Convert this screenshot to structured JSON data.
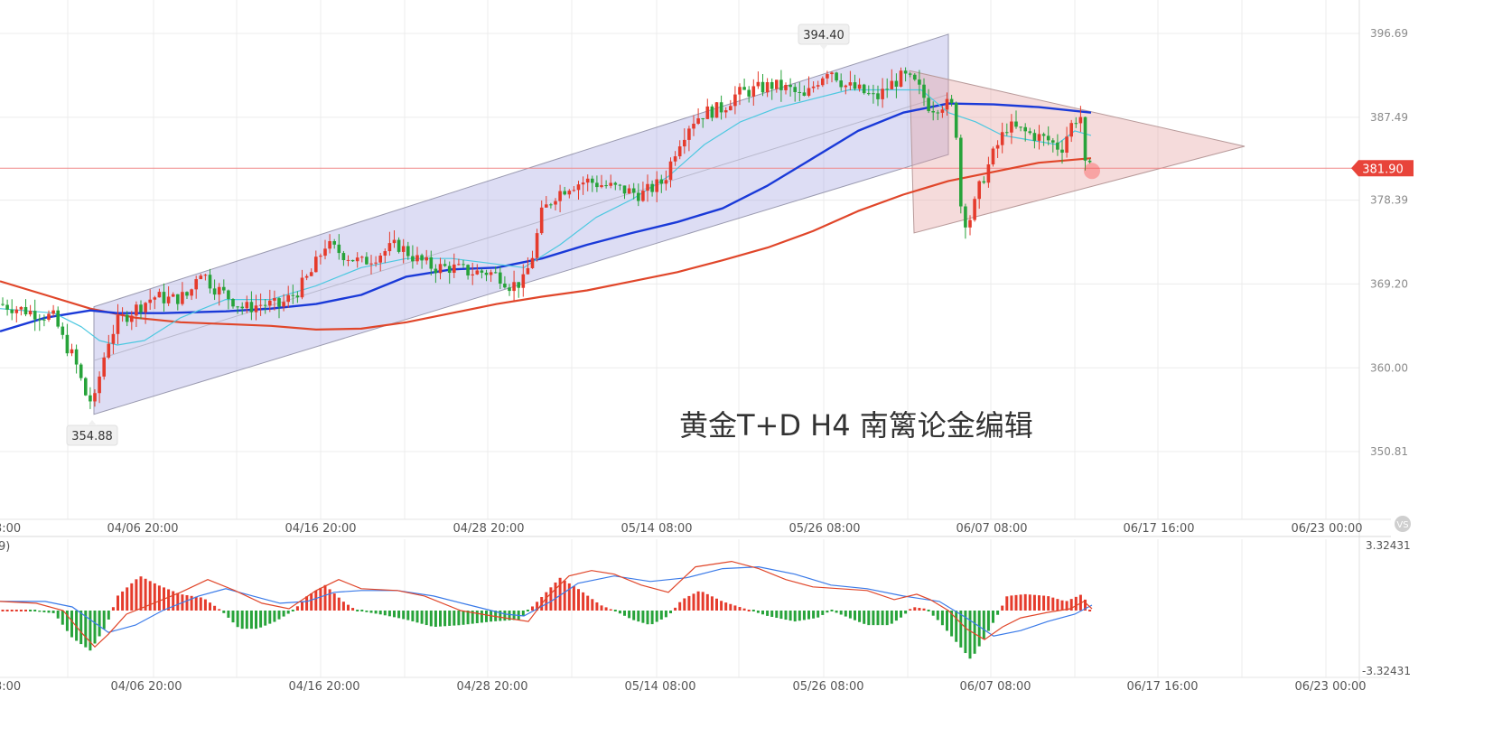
{
  "chart_data": {
    "type": "candlestick",
    "watermark": "黄金T+D  H4   南篱论金编辑",
    "price_axis": {
      "ticks": [
        396.69,
        387.49,
        378.39,
        369.2,
        360.0,
        350.81
      ],
      "tick_labels": [
        "396.69",
        "387.49",
        "378.39",
        "369.20",
        "360.00",
        "350.81"
      ],
      "current_price": 381.9,
      "current_price_label": "381.90"
    },
    "time_axis": {
      "edge_label": "3:00",
      "labels": [
        "04/06 20:00",
        "04/16 20:00",
        "04/28 20:00",
        "05/14 08:00",
        "05/26 08:00",
        "06/07 08:00",
        "06/17 16:00",
        "06/23 00:00"
      ]
    },
    "annotations": {
      "high_label": "394.40",
      "low_label": "354.88"
    },
    "channel_top": [
      [
        104,
        366.7
      ],
      [
        1050,
        396.6
      ]
    ],
    "channel_bottom": [
      [
        104,
        354.9
      ],
      [
        1050,
        383.4
      ]
    ],
    "triangle": [
      [
        1007,
        392.6
      ],
      [
        1378,
        384.3
      ],
      [
        1012,
        374.8
      ]
    ],
    "close_keypoints": [
      [
        0,
        367.0
      ],
      [
        20,
        366.5
      ],
      [
        40,
        366.0
      ],
      [
        60,
        365.5
      ],
      [
        70,
        363.0
      ],
      [
        82,
        361.0
      ],
      [
        95,
        357.0
      ],
      [
        104,
        356.0
      ],
      [
        112,
        360.0
      ],
      [
        120,
        363.0
      ],
      [
        130,
        365.0
      ],
      [
        150,
        366.5
      ],
      [
        170,
        367.8
      ],
      [
        190,
        367.5
      ],
      [
        210,
        368.0
      ],
      [
        220,
        371.0
      ],
      [
        235,
        369.0
      ],
      [
        250,
        368.0
      ],
      [
        270,
        366.5
      ],
      [
        290,
        367.0
      ],
      [
        310,
        366.8
      ],
      [
        330,
        368.5
      ],
      [
        345,
        370.5
      ],
      [
        360,
        373.5
      ],
      [
        380,
        372.5
      ],
      [
        400,
        371.5
      ],
      [
        420,
        372.5
      ],
      [
        440,
        373.5
      ],
      [
        460,
        372.0
      ],
      [
        480,
        371.0
      ],
      [
        500,
        371.0
      ],
      [
        520,
        370.5
      ],
      [
        540,
        370.5
      ],
      [
        555,
        370.0
      ],
      [
        565,
        369.0
      ],
      [
        580,
        369.5
      ],
      [
        590,
        372.5
      ],
      [
        600,
        377.0
      ],
      [
        615,
        379.0
      ],
      [
        630,
        380.0
      ],
      [
        650,
        380.5
      ],
      [
        670,
        380.0
      ],
      [
        690,
        379.5
      ],
      [
        710,
        379.0
      ],
      [
        735,
        380.5
      ],
      [
        750,
        384.5
      ],
      [
        765,
        387.0
      ],
      [
        780,
        388.0
      ],
      [
        800,
        388.5
      ],
      [
        815,
        390.0
      ],
      [
        835,
        390.5
      ],
      [
        855,
        391.0
      ],
      [
        875,
        390.5
      ],
      [
        890,
        389.5
      ],
      [
        905,
        391.5
      ],
      [
        918,
        393.0
      ],
      [
        935,
        391.0
      ],
      [
        950,
        390.5
      ],
      [
        970,
        389.5
      ],
      [
        985,
        391.0
      ],
      [
        1000,
        392.0
      ],
      [
        1015,
        391.0
      ],
      [
        1030,
        388.5
      ],
      [
        1045,
        389.0
      ],
      [
        1057,
        388.5
      ],
      [
        1065,
        376.0
      ],
      [
        1075,
        376.5
      ],
      [
        1085,
        380.0
      ],
      [
        1100,
        383.5
      ],
      [
        1115,
        386.5
      ],
      [
        1130,
        386.0
      ],
      [
        1145,
        385.5
      ],
      [
        1160,
        385.0
      ],
      [
        1175,
        384.0
      ],
      [
        1185,
        386.5
      ],
      [
        1196,
        388.0
      ],
      [
        1202,
        381.5
      ],
      [
        1208,
        381.9
      ]
    ],
    "ma_fast_cyan": [
      [
        0,
        366.5
      ],
      [
        60,
        366.0
      ],
      [
        90,
        364.5
      ],
      [
        110,
        363.0
      ],
      [
        130,
        362.5
      ],
      [
        160,
        363.0
      ],
      [
        200,
        365.5
      ],
      [
        250,
        367.5
      ],
      [
        300,
        367.5
      ],
      [
        350,
        369.0
      ],
      [
        400,
        371.0
      ],
      [
        450,
        372.0
      ],
      [
        500,
        372.0
      ],
      [
        540,
        371.5
      ],
      [
        580,
        371.0
      ],
      [
        620,
        373.5
      ],
      [
        660,
        376.5
      ],
      [
        700,
        378.5
      ],
      [
        740,
        381.0
      ],
      [
        780,
        384.5
      ],
      [
        820,
        387.0
      ],
      [
        860,
        388.5
      ],
      [
        900,
        389.5
      ],
      [
        940,
        390.5
      ],
      [
        980,
        390.5
      ],
      [
        1020,
        390.5
      ],
      [
        1050,
        388.0
      ],
      [
        1080,
        387.0
      ],
      [
        1110,
        385.5
      ],
      [
        1140,
        385.0
      ],
      [
        1170,
        384.5
      ],
      [
        1190,
        386.0
      ],
      [
        1208,
        385.5
      ]
    ],
    "ma_mid_blue": [
      [
        0,
        364.0
      ],
      [
        50,
        365.5
      ],
      [
        100,
        366.3
      ],
      [
        130,
        366.0
      ],
      [
        180,
        366.0
      ],
      [
        250,
        366.2
      ],
      [
        300,
        366.5
      ],
      [
        350,
        367.0
      ],
      [
        400,
        368.0
      ],
      [
        450,
        370.0
      ],
      [
        500,
        370.8
      ],
      [
        550,
        371.0
      ],
      [
        600,
        372.0
      ],
      [
        650,
        373.5
      ],
      [
        700,
        374.8
      ],
      [
        750,
        376.0
      ],
      [
        800,
        377.5
      ],
      [
        850,
        380.0
      ],
      [
        900,
        383.0
      ],
      [
        950,
        386.0
      ],
      [
        1000,
        388.0
      ],
      [
        1050,
        389.0
      ],
      [
        1100,
        388.9
      ],
      [
        1150,
        388.6
      ],
      [
        1208,
        388.0
      ]
    ],
    "ma_slow_red": [
      [
        0,
        369.5
      ],
      [
        50,
        368.0
      ],
      [
        100,
        366.5
      ],
      [
        150,
        365.5
      ],
      [
        200,
        365.0
      ],
      [
        250,
        364.8
      ],
      [
        300,
        364.6
      ],
      [
        350,
        364.2
      ],
      [
        400,
        364.3
      ],
      [
        450,
        365.0
      ],
      [
        500,
        366.0
      ],
      [
        550,
        367.0
      ],
      [
        600,
        367.8
      ],
      [
        650,
        368.5
      ],
      [
        700,
        369.5
      ],
      [
        750,
        370.5
      ],
      [
        800,
        371.8
      ],
      [
        850,
        373.2
      ],
      [
        900,
        375.0
      ],
      [
        950,
        377.2
      ],
      [
        1000,
        379.0
      ],
      [
        1050,
        380.5
      ],
      [
        1100,
        381.5
      ],
      [
        1150,
        382.5
      ],
      [
        1208,
        383.0
      ]
    ],
    "macd_panel": {
      "label": "9)",
      "max_label": "3.32431",
      "min_label": "-3.32431",
      "range": [
        -3.32431,
        3.32431
      ],
      "hist_keypoints": [
        [
          0,
          0.0
        ],
        [
          30,
          0.0
        ],
        [
          60,
          -0.15
        ],
        [
          80,
          -1.5
        ],
        [
          100,
          -2.2
        ],
        [
          118,
          -0.8
        ],
        [
          130,
          0.8
        ],
        [
          155,
          1.9
        ],
        [
          175,
          1.4
        ],
        [
          200,
          0.9
        ],
        [
          225,
          0.7
        ],
        [
          245,
          0.0
        ],
        [
          265,
          -1.0
        ],
        [
          285,
          -1.0
        ],
        [
          305,
          -0.6
        ],
        [
          325,
          0.0
        ],
        [
          340,
          0.8
        ],
        [
          360,
          1.4
        ],
        [
          380,
          0.5
        ],
        [
          395,
          0.0
        ],
        [
          420,
          -0.2
        ],
        [
          450,
          -0.5
        ],
        [
          480,
          -0.9
        ],
        [
          510,
          -0.8
        ],
        [
          545,
          -0.6
        ],
        [
          575,
          -0.5
        ],
        [
          595,
          0.5
        ],
        [
          620,
          1.8
        ],
        [
          640,
          1.2
        ],
        [
          665,
          0.3
        ],
        [
          680,
          0.0
        ],
        [
          700,
          -0.5
        ],
        [
          720,
          -0.8
        ],
        [
          740,
          -0.3
        ],
        [
          755,
          0.6
        ],
        [
          775,
          1.1
        ],
        [
          800,
          0.5
        ],
        [
          825,
          0.1
        ],
        [
          850,
          -0.3
        ],
        [
          880,
          -0.6
        ],
        [
          905,
          -0.4
        ],
        [
          920,
          0.0
        ],
        [
          935,
          -0.3
        ],
        [
          960,
          -0.8
        ],
        [
          985,
          -0.8
        ],
        [
          1000,
          -0.3
        ],
        [
          1010,
          0.2
        ],
        [
          1025,
          0.1
        ],
        [
          1040,
          -0.6
        ],
        [
          1060,
          -1.8
        ],
        [
          1075,
          -2.7
        ],
        [
          1090,
          -1.5
        ],
        [
          1105,
          -0.2
        ],
        [
          1115,
          0.8
        ],
        [
          1135,
          0.9
        ],
        [
          1160,
          0.8
        ],
        [
          1180,
          0.5
        ],
        [
          1198,
          0.9
        ],
        [
          1205,
          0.3
        ],
        [
          1209,
          -0.4
        ]
      ],
      "dif_keypoints": [
        [
          0,
          0.5
        ],
        [
          40,
          0.4
        ],
        [
          70,
          0.0
        ],
        [
          90,
          -1.2
        ],
        [
          105,
          -2.0
        ],
        [
          120,
          -1.3
        ],
        [
          140,
          -0.2
        ],
        [
          170,
          0.4
        ],
        [
          200,
          1.0
        ],
        [
          230,
          1.7
        ],
        [
          260,
          1.1
        ],
        [
          290,
          0.4
        ],
        [
          320,
          0.1
        ],
        [
          350,
          1.1
        ],
        [
          375,
          1.7
        ],
        [
          400,
          1.2
        ],
        [
          440,
          1.1
        ],
        [
          470,
          0.8
        ],
        [
          510,
          0.0
        ],
        [
          545,
          -0.3
        ],
        [
          585,
          -0.6
        ],
        [
          605,
          0.7
        ],
        [
          630,
          1.9
        ],
        [
          655,
          2.2
        ],
        [
          680,
          2.0
        ],
        [
          710,
          1.4
        ],
        [
          740,
          1.0
        ],
        [
          770,
          2.4
        ],
        [
          810,
          2.7
        ],
        [
          840,
          2.3
        ],
        [
          870,
          1.7
        ],
        [
          900,
          1.3
        ],
        [
          930,
          1.2
        ],
        [
          960,
          1.1
        ],
        [
          990,
          0.6
        ],
        [
          1015,
          0.9
        ],
        [
          1030,
          0.6
        ],
        [
          1050,
          0.0
        ],
        [
          1070,
          -1.0
        ],
        [
          1090,
          -1.6
        ],
        [
          1110,
          -0.9
        ],
        [
          1130,
          -0.4
        ],
        [
          1160,
          -0.1
        ],
        [
          1185,
          0.1
        ],
        [
          1200,
          0.5
        ],
        [
          1209,
          0.1
        ]
      ],
      "dea_keypoints": [
        [
          0,
          0.5
        ],
        [
          50,
          0.5
        ],
        [
          80,
          0.2
        ],
        [
          100,
          -0.5
        ],
        [
          120,
          -1.2
        ],
        [
          150,
          -0.8
        ],
        [
          180,
          0.0
        ],
        [
          220,
          0.8
        ],
        [
          250,
          1.2
        ],
        [
          280,
          0.8
        ],
        [
          310,
          0.4
        ],
        [
          340,
          0.5
        ],
        [
          370,
          1.0
        ],
        [
          400,
          1.1
        ],
        [
          440,
          1.1
        ],
        [
          480,
          0.8
        ],
        [
          520,
          0.3
        ],
        [
          560,
          -0.2
        ],
        [
          580,
          -0.3
        ],
        [
          610,
          0.5
        ],
        [
          640,
          1.5
        ],
        [
          680,
          1.9
        ],
        [
          720,
          1.6
        ],
        [
          760,
          1.8
        ],
        [
          800,
          2.3
        ],
        [
          840,
          2.4
        ],
        [
          880,
          2.0
        ],
        [
          920,
          1.4
        ],
        [
          960,
          1.2
        ],
        [
          1000,
          0.8
        ],
        [
          1040,
          0.5
        ],
        [
          1070,
          -0.4
        ],
        [
          1100,
          -1.4
        ],
        [
          1130,
          -1.1
        ],
        [
          1160,
          -0.6
        ],
        [
          1190,
          -0.2
        ],
        [
          1209,
          0.3
        ]
      ]
    }
  }
}
